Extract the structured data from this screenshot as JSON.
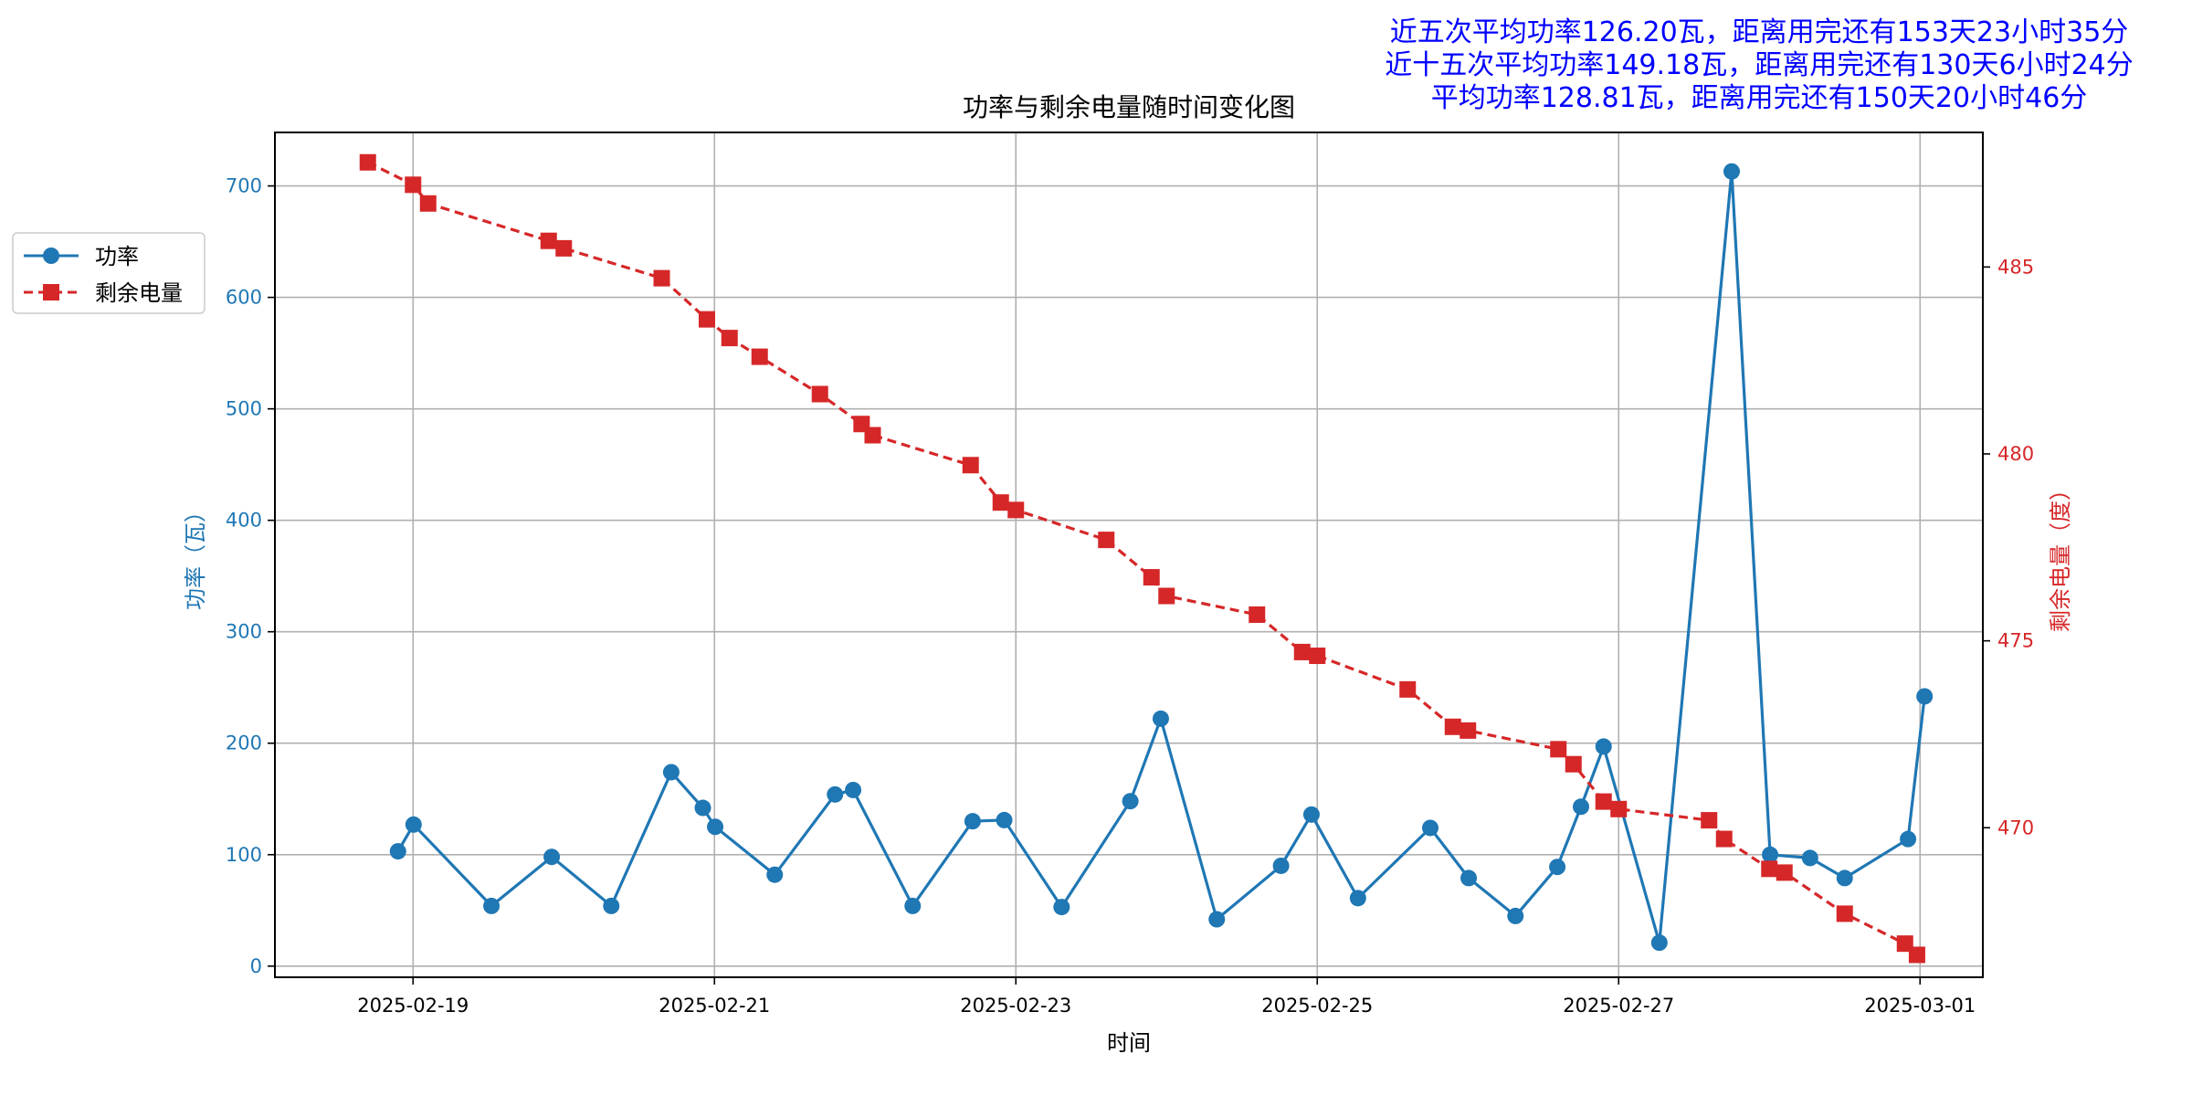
{
  "chart_data": {
    "type": "line",
    "title": "功率与剩余电量随时间变化图",
    "xlabel": "时间",
    "x_ticks": [
      "2025-02-19",
      "2025-02-21",
      "2025-02-23",
      "2025-02-25",
      "2025-02-27",
      "2025-03-01"
    ],
    "xlim": [
      "2025-02-18 02:00",
      "2025-03-01 10:00"
    ],
    "grid": true,
    "legend_position": "outside-left",
    "summary_lines": [
      "近五次平均功率126.20瓦，距离用完还有153天23小时35分",
      "近十五次平均功率149.18瓦，距离用完还有130天6小时24分",
      "平均功率128.81瓦，距离用完还有150天20小时46分"
    ],
    "summary_color": "#0000ff",
    "axes": {
      "left": {
        "label": "功率（瓦）",
        "ylim": [
          -10,
          748
        ],
        "ticks": [
          0,
          100,
          200,
          300,
          400,
          500,
          600,
          700
        ],
        "color": "#1f77b4"
      },
      "right": {
        "label": "剩余电量（度）",
        "ylim": [
          466.0,
          488.6
        ],
        "ticks": [
          470,
          475,
          480,
          485
        ],
        "color": "#d62728"
      }
    },
    "series": [
      {
        "name": "功率",
        "axis": "left",
        "color": "#1f77b4",
        "line_style": "solid",
        "marker": "circle",
        "points": [
          [
            "2025-02-18 21:36",
            103
          ],
          [
            "2025-02-19 00:05",
            127
          ],
          [
            "2025-02-19 12:29",
            54
          ],
          [
            "2025-02-19 22:05",
            98
          ],
          [
            "2025-02-20 07:34",
            54
          ],
          [
            "2025-02-20 17:07",
            174
          ],
          [
            "2025-02-20 22:09",
            142
          ],
          [
            "2025-02-21 00:07",
            125
          ],
          [
            "2025-02-21 09:36",
            82
          ],
          [
            "2025-02-21 19:12",
            154
          ],
          [
            "2025-02-21 22:05",
            158
          ],
          [
            "2025-02-22 07:34",
            54
          ],
          [
            "2025-02-22 17:07",
            130
          ],
          [
            "2025-02-22 22:09",
            131
          ],
          [
            "2025-02-23 07:17",
            53
          ],
          [
            "2025-02-23 18:14",
            148
          ],
          [
            "2025-02-23 23:05",
            222
          ],
          [
            "2025-02-24 08:00",
            42
          ],
          [
            "2025-02-24 18:14",
            90
          ],
          [
            "2025-02-24 23:05",
            136
          ],
          [
            "2025-02-25 06:29",
            61
          ],
          [
            "2025-02-25 18:00",
            124
          ],
          [
            "2025-02-26 00:07",
            79
          ],
          [
            "2025-02-26 07:34",
            45
          ],
          [
            "2025-02-26 14:14",
            89
          ],
          [
            "2025-02-26 18:00",
            143
          ],
          [
            "2025-02-26 21:36",
            197
          ],
          [
            "2025-02-27 06:29",
            21
          ],
          [
            "2025-02-27 18:00",
            713
          ],
          [
            "2025-02-28 00:07",
            100
          ],
          [
            "2025-02-28 06:29",
            97
          ],
          [
            "2025-02-28 12:00",
            79
          ],
          [
            "2025-02-28 22:05",
            114
          ],
          [
            "2025-03-01 00:43",
            242
          ]
        ]
      },
      {
        "name": "剩余电量",
        "axis": "right",
        "color": "#d62728",
        "line_style": "dashed",
        "marker": "square",
        "points": [
          [
            "2025-02-18 16:48",
            487.8
          ],
          [
            "2025-02-19 00:00",
            487.2
          ],
          [
            "2025-02-19 02:24",
            486.7
          ],
          [
            "2025-02-19 21:36",
            485.7
          ],
          [
            "2025-02-20 00:00",
            485.5
          ],
          [
            "2025-02-20 15:36",
            484.7
          ],
          [
            "2025-02-20 22:48",
            483.6
          ],
          [
            "2025-02-21 02:24",
            483.1
          ],
          [
            "2025-02-21 07:12",
            482.6
          ],
          [
            "2025-02-21 16:48",
            481.6
          ],
          [
            "2025-02-21 23:26",
            480.8
          ],
          [
            "2025-02-22 01:12",
            480.5
          ],
          [
            "2025-02-22 16:48",
            479.7
          ],
          [
            "2025-02-22 21:36",
            478.7
          ],
          [
            "2025-02-23 00:00",
            478.5
          ],
          [
            "2025-02-23 14:24",
            477.7
          ],
          [
            "2025-02-23 21:36",
            476.7
          ],
          [
            "2025-02-24 00:00",
            476.2
          ],
          [
            "2025-02-24 14:24",
            475.7
          ],
          [
            "2025-02-24 21:36",
            474.7
          ],
          [
            "2025-02-25 00:00",
            474.6
          ],
          [
            "2025-02-25 14:24",
            473.7
          ],
          [
            "2025-02-25 21:36",
            472.7
          ],
          [
            "2025-02-26 00:00",
            472.6
          ],
          [
            "2025-02-26 14:24",
            472.1
          ],
          [
            "2025-02-26 16:48",
            471.7
          ],
          [
            "2025-02-26 21:36",
            470.7
          ],
          [
            "2025-02-27 00:00",
            470.5
          ],
          [
            "2025-02-27 14:24",
            470.2
          ],
          [
            "2025-02-27 16:48",
            469.7
          ],
          [
            "2025-02-28 00:00",
            468.9
          ],
          [
            "2025-02-28 02:24",
            468.8
          ],
          [
            "2025-02-28 12:00",
            467.7
          ],
          [
            "2025-02-28 21:36",
            466.9
          ],
          [
            "2025-02-28 23:31",
            466.6
          ]
        ]
      }
    ]
  }
}
